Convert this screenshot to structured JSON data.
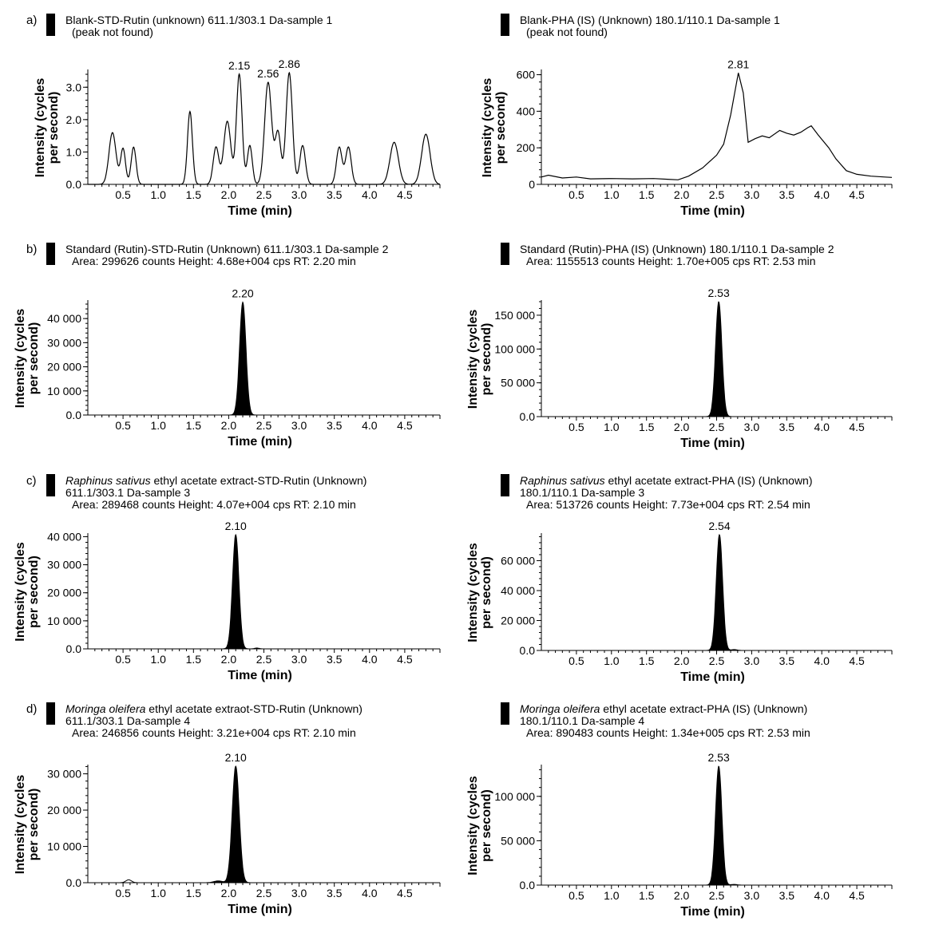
{
  "chart_data": [
    {
      "type": "line",
      "panel_label": "a)",
      "title_lines": [
        [
          {
            "t": "Blank-STD-Rutin (unknown) 611.1/303.1 Da-sample 1"
          }
        ],
        [
          {
            "t": "(peak not found)"
          }
        ]
      ],
      "xlabel": "Time (min)",
      "ylabel_lines": [
        "Intensity (cycles",
        "per second)"
      ],
      "xlim": [
        0,
        5.0
      ],
      "ylim": [
        0,
        3.5
      ],
      "xticks": [
        {
          "v": 0.5,
          "label": "0.5"
        },
        {
          "v": 1.0,
          "label": "1.0"
        },
        {
          "v": 1.5,
          "label": "1.5"
        },
        {
          "v": 2.0,
          "label": "2.0"
        },
        {
          "v": 2.5,
          "label": "2.5"
        },
        {
          "v": 3.0,
          "label": "3.0"
        },
        {
          "v": 3.5,
          "label": "3.5"
        },
        {
          "v": 4.0,
          "label": "4.0"
        },
        {
          "v": 4.5,
          "label": "4.5"
        }
      ],
      "yticks": [
        {
          "v": 0,
          "label": "0.0"
        },
        {
          "v": 1.0,
          "label": "1.0"
        },
        {
          "v": 2.0,
          "label": "2.0"
        },
        {
          "v": 3.0,
          "label": "3.0"
        }
      ],
      "filled": false,
      "peaks": [
        {
          "x": 0.35,
          "y": 1.6,
          "w": 0.05
        },
        {
          "x": 0.5,
          "y": 1.1,
          "w": 0.035
        },
        {
          "x": 0.65,
          "y": 1.15,
          "w": 0.035
        },
        {
          "x": 1.45,
          "y": 2.25,
          "w": 0.035
        },
        {
          "x": 1.82,
          "y": 1.15,
          "w": 0.04
        },
        {
          "x": 1.98,
          "y": 1.95,
          "w": 0.05
        },
        {
          "x": 2.15,
          "y": 3.4,
          "w": 0.04
        },
        {
          "x": 2.3,
          "y": 1.2,
          "w": 0.035
        },
        {
          "x": 2.56,
          "y": 3.15,
          "w": 0.05
        },
        {
          "x": 2.7,
          "y": 1.6,
          "w": 0.04
        },
        {
          "x": 2.86,
          "y": 3.45,
          "w": 0.045
        },
        {
          "x": 3.05,
          "y": 1.2,
          "w": 0.04
        },
        {
          "x": 3.57,
          "y": 1.15,
          "w": 0.04
        },
        {
          "x": 3.7,
          "y": 1.15,
          "w": 0.04
        },
        {
          "x": 4.35,
          "y": 1.3,
          "w": 0.06
        },
        {
          "x": 4.8,
          "y": 1.55,
          "w": 0.06
        }
      ],
      "peak_labels": [
        {
          "x": 2.15,
          "y": 3.4,
          "label": "2.15"
        },
        {
          "x": 2.56,
          "y": 3.15,
          "label": "2.56"
        },
        {
          "x": 2.86,
          "y": 3.45,
          "label": "2.86"
        }
      ]
    },
    {
      "type": "line",
      "panel_label": "",
      "title_lines": [
        [
          {
            "t": "Blank-PHA (IS) (Unknown) 180.1/110.1 Da-sample 1"
          }
        ],
        [
          {
            "t": "(peak not found)"
          }
        ]
      ],
      "xlabel": "Time (min)",
      "ylabel_lines": [
        "Intensity (cycles",
        "per second)"
      ],
      "xlim": [
        0,
        5.0
      ],
      "ylim": [
        0,
        620
      ],
      "xticks": [
        {
          "v": 0.5,
          "label": "0.5"
        },
        {
          "v": 1.0,
          "label": "1.0"
        },
        {
          "v": 1.5,
          "label": "1.5"
        },
        {
          "v": 2.0,
          "label": "2.0"
        },
        {
          "v": 2.5,
          "label": "2.5"
        },
        {
          "v": 3.0,
          "label": "3.0"
        },
        {
          "v": 3.5,
          "label": "3.5"
        },
        {
          "v": 4.0,
          "label": "4.0"
        },
        {
          "v": 4.5,
          "label": "4.5"
        }
      ],
      "yticks": [
        {
          "v": 0,
          "label": "0"
        },
        {
          "v": 200,
          "label": "200"
        },
        {
          "v": 400,
          "label": "400"
        },
        {
          "v": 600,
          "label": "600"
        }
      ],
      "filled": false,
      "points": [
        [
          0,
          40
        ],
        [
          0.1,
          50
        ],
        [
          0.3,
          35
        ],
        [
          0.5,
          40
        ],
        [
          0.7,
          30
        ],
        [
          1.0,
          32
        ],
        [
          1.3,
          30
        ],
        [
          1.6,
          32
        ],
        [
          1.8,
          28
        ],
        [
          1.95,
          25
        ],
        [
          2.1,
          45
        ],
        [
          2.3,
          90
        ],
        [
          2.5,
          160
        ],
        [
          2.6,
          220
        ],
        [
          2.7,
          380
        ],
        [
          2.81,
          610
        ],
        [
          2.88,
          500
        ],
        [
          2.95,
          230
        ],
        [
          3.05,
          250
        ],
        [
          3.15,
          265
        ],
        [
          3.25,
          255
        ],
        [
          3.4,
          295
        ],
        [
          3.5,
          280
        ],
        [
          3.6,
          270
        ],
        [
          3.7,
          285
        ],
        [
          3.8,
          310
        ],
        [
          3.85,
          320
        ],
        [
          3.95,
          270
        ],
        [
          4.1,
          200
        ],
        [
          4.2,
          140
        ],
        [
          4.35,
          75
        ],
        [
          4.5,
          55
        ],
        [
          4.7,
          45
        ],
        [
          4.9,
          40
        ],
        [
          5.0,
          38
        ]
      ],
      "peak_labels": [
        {
          "x": 2.81,
          "y": 610,
          "label": "2.81"
        }
      ]
    },
    {
      "type": "line",
      "panel_label": "b)",
      "title_lines": [
        [
          {
            "t": "Standard (Rutin)-STD-Rutin (Unknown) 611.1/303.1 Da-sample 2"
          }
        ],
        [
          {
            "t": "Area: 299626 counts Height: 4.68e+004 cps RT: 2.20 min"
          }
        ]
      ],
      "xlabel": "Time (min)",
      "ylabel_lines": [
        "Intensity (cycles",
        "per second)"
      ],
      "xlim": [
        0,
        5.0
      ],
      "ylim": [
        0,
        47000
      ],
      "xticks": [
        {
          "v": 0.5,
          "label": "0.5"
        },
        {
          "v": 1.0,
          "label": "1.0"
        },
        {
          "v": 1.5,
          "label": "1.5"
        },
        {
          "v": 2.0,
          "label": "2.0"
        },
        {
          "v": 2.5,
          "label": "2.5"
        },
        {
          "v": 3.0,
          "label": "3.0"
        },
        {
          "v": 3.5,
          "label": "3.5"
        },
        {
          "v": 4.0,
          "label": "4.0"
        },
        {
          "v": 4.5,
          "label": "4.5"
        }
      ],
      "yticks": [
        {
          "v": 0,
          "label": "0.0"
        },
        {
          "v": 10000,
          "label": "10 000"
        },
        {
          "v": 20000,
          "label": "20 000"
        },
        {
          "v": 30000,
          "label": "30 000"
        },
        {
          "v": 40000,
          "label": "40 000"
        }
      ],
      "filled": true,
      "peaks": [
        {
          "x": 2.2,
          "y": 46800,
          "w": 0.045
        }
      ],
      "peak_labels": [
        {
          "x": 2.2,
          "y": 46800,
          "label": "2.20",
          "small": true
        }
      ]
    },
    {
      "type": "line",
      "panel_label": "",
      "title_lines": [
        [
          {
            "t": "Standard (Rutin)-PHA (IS) (Unknown) 180.1/110.1 Da-sample 2"
          }
        ],
        [
          {
            "t": "Area: 1155513 counts Height: 1.70e+005 cps RT: 2.53 min"
          }
        ]
      ],
      "xlabel": "Time (min)",
      "ylabel_lines": [
        "Intensity (cycles",
        "per second)"
      ],
      "xlim": [
        0,
        5.0
      ],
      "ylim": [
        0,
        170000
      ],
      "xticks": [
        {
          "v": 0.5,
          "label": "0.5"
        },
        {
          "v": 1.0,
          "label": "1.0"
        },
        {
          "v": 1.5,
          "label": "1.5"
        },
        {
          "v": 2.0,
          "label": "2.0"
        },
        {
          "v": 2.5,
          "label": "2.5"
        },
        {
          "v": 3.0,
          "label": "3.0"
        },
        {
          "v": 3.5,
          "label": "3.5"
        },
        {
          "v": 4.0,
          "label": "4.0"
        },
        {
          "v": 4.5,
          "label": "4.5"
        }
      ],
      "yticks": [
        {
          "v": 0,
          "label": "0.0"
        },
        {
          "v": 50000,
          "label": "50 000"
        },
        {
          "v": 100000,
          "label": "100 000"
        },
        {
          "v": 150000,
          "label": "150 000"
        }
      ],
      "filled": true,
      "peaks": [
        {
          "x": 2.53,
          "y": 170000,
          "w": 0.045
        }
      ],
      "peak_labels": [
        {
          "x": 2.53,
          "y": 170000,
          "label": "2.53"
        }
      ]
    },
    {
      "type": "line",
      "panel_label": "c)",
      "title_lines": [
        [
          {
            "t": "Raphinus sativus",
            "i": true
          },
          {
            "t": " ethyl acetate extract-STD-Rutin (Unknown)"
          }
        ],
        [
          {
            "t": "611.1/303.1 Da-sample 3"
          }
        ],
        [
          {
            "t": "Area: 289468 counts Height: 4.07e+004 cps RT: 2.10 min"
          }
        ]
      ],
      "xlabel": "Time (min)",
      "ylabel_lines": [
        "Intensity (cycles",
        "per second)"
      ],
      "xlim": [
        0,
        5.0
      ],
      "ylim": [
        0,
        40700
      ],
      "xticks": [
        {
          "v": 0.5,
          "label": "0.5"
        },
        {
          "v": 1.0,
          "label": "1.0"
        },
        {
          "v": 1.5,
          "label": "1.5"
        },
        {
          "v": 2.0,
          "label": "2.0"
        },
        {
          "v": 2.5,
          "label": "2.5"
        },
        {
          "v": 3.0,
          "label": "3.0"
        },
        {
          "v": 3.5,
          "label": "3.5"
        },
        {
          "v": 4.0,
          "label": "4.0"
        },
        {
          "v": 4.5,
          "label": "4.5"
        }
      ],
      "yticks": [
        {
          "v": 0,
          "label": "0.0"
        },
        {
          "v": 10000,
          "label": "10 000"
        },
        {
          "v": 20000,
          "label": "20 000"
        },
        {
          "v": 30000,
          "label": "30 000"
        },
        {
          "v": 40000,
          "label": "40 000"
        }
      ],
      "filled": true,
      "peaks": [
        {
          "x": 2.1,
          "y": 40700,
          "w": 0.045
        },
        {
          "x": 2.4,
          "y": 300,
          "w": 0.03
        }
      ],
      "peak_labels": [
        {
          "x": 2.1,
          "y": 40700,
          "label": "2.10"
        }
      ]
    },
    {
      "type": "line",
      "panel_label": "",
      "title_lines": [
        [
          {
            "t": "Raphinus sativus",
            "i": true
          },
          {
            "t": " ethyl acetate extract-PHA (IS) (Unknown)"
          }
        ],
        [
          {
            "t": "180.1/110.1 Da-sample 3"
          }
        ],
        [
          {
            "t": "Area: 513726 counts Height: 7.73e+004 cps RT: 2.54 min"
          }
        ]
      ],
      "xlabel": "Time (min)",
      "ylabel_lines": [
        "Intensity (cycles",
        "per second)"
      ],
      "xlim": [
        0,
        5.0
      ],
      "ylim": [
        0,
        77300
      ],
      "xticks": [
        {
          "v": 0.5,
          "label": "0.5"
        },
        {
          "v": 1.0,
          "label": "1.0"
        },
        {
          "v": 1.5,
          "label": "1.5"
        },
        {
          "v": 2.0,
          "label": "2.0"
        },
        {
          "v": 2.5,
          "label": "2.5"
        },
        {
          "v": 3.0,
          "label": "3.0"
        },
        {
          "v": 3.5,
          "label": "3.5"
        },
        {
          "v": 4.0,
          "label": "4.0"
        },
        {
          "v": 4.5,
          "label": "4.5"
        }
      ],
      "yticks": [
        {
          "v": 0,
          "label": "0.0"
        },
        {
          "v": 20000,
          "label": "20 000"
        },
        {
          "v": 40000,
          "label": "40 000"
        },
        {
          "v": 60000,
          "label": "60 000"
        }
      ],
      "filled": true,
      "peaks": [
        {
          "x": 2.54,
          "y": 77300,
          "w": 0.045
        },
        {
          "x": 2.75,
          "y": 600,
          "w": 0.04
        }
      ],
      "peak_labels": [
        {
          "x": 2.54,
          "y": 77300,
          "label": "2.54"
        }
      ]
    },
    {
      "type": "line",
      "panel_label": "d)",
      "title_lines": [
        [
          {
            "t": "Moringa oleifera",
            "i": true
          },
          {
            "t": " ethyl acetate extraot-STD-Rutin (Unknown)"
          }
        ],
        [
          {
            "t": "611.1/303.1 Da-sample 4"
          }
        ],
        [
          {
            "t": "Area: 246856 counts Height: 3.21e+004 cps RT: 2.10 min"
          }
        ]
      ],
      "xlabel": "Time (min)",
      "ylabel_lines": [
        "Intensity (cycles",
        "per second)"
      ],
      "xlim": [
        0,
        5.0
      ],
      "ylim": [
        0,
        32100
      ],
      "xticks": [
        {
          "v": 0.5,
          "label": "0.5"
        },
        {
          "v": 1.0,
          "label": "1.0"
        },
        {
          "v": 1.5,
          "label": "1.5"
        },
        {
          "v": 2.0,
          "label": "2.0"
        },
        {
          "v": 2.5,
          "label": "2.5"
        },
        {
          "v": 3.0,
          "label": "3.0"
        },
        {
          "v": 3.5,
          "label": "3.5"
        },
        {
          "v": 4.0,
          "label": "4.0"
        },
        {
          "v": 4.5,
          "label": "4.5"
        }
      ],
      "yticks": [
        {
          "v": 0,
          "label": "0.0"
        },
        {
          "v": 10000,
          "label": "10 000"
        },
        {
          "v": 20000,
          "label": "20 000"
        },
        {
          "v": 30000,
          "label": "30 000"
        }
      ],
      "filled": true,
      "peaks": [
        {
          "x": 2.1,
          "y": 32100,
          "w": 0.05
        },
        {
          "x": 1.85,
          "y": 500,
          "w": 0.06
        }
      ],
      "outline_peaks": [
        {
          "x": 0.58,
          "y": 800,
          "w": 0.04
        }
      ],
      "peak_labels": [
        {
          "x": 2.1,
          "y": 32100,
          "label": "2.10"
        }
      ]
    },
    {
      "type": "line",
      "panel_label": "",
      "title_lines": [
        [
          {
            "t": "Moringa oleifera",
            "i": true
          },
          {
            "t": " ethyl acetate extract-PHA (IS) (Unknown)"
          }
        ],
        [
          {
            "t": "180.1/110.1 Da-sample 4"
          }
        ],
        [
          {
            "t": "Area: 890483 counts Height: 1.34e+005 cps RT: 2.53 min"
          }
        ]
      ],
      "xlabel": "Time (min)",
      "ylabel_lines": [
        "Intensity (cycles",
        "per second)"
      ],
      "xlim": [
        0,
        5.0
      ],
      "ylim": [
        0,
        134000
      ],
      "xticks": [
        {
          "v": 0.5,
          "label": "0.5"
        },
        {
          "v": 1.0,
          "label": "1.0"
        },
        {
          "v": 1.5,
          "label": "1.5"
        },
        {
          "v": 2.0,
          "label": "2.0"
        },
        {
          "v": 2.5,
          "label": "2.5"
        },
        {
          "v": 3.0,
          "label": "3.0"
        },
        {
          "v": 3.5,
          "label": "3.5"
        },
        {
          "v": 4.0,
          "label": "4.0"
        },
        {
          "v": 4.5,
          "label": "4.5"
        }
      ],
      "yticks": [
        {
          "v": 0,
          "label": "0.0"
        },
        {
          "v": 50000,
          "label": "50 000"
        },
        {
          "v": 100000,
          "label": "100 000"
        }
      ],
      "filled": true,
      "peaks": [
        {
          "x": 2.53,
          "y": 134000,
          "w": 0.045
        },
        {
          "x": 2.75,
          "y": 800,
          "w": 0.04
        }
      ],
      "peak_labels": [
        {
          "x": 2.53,
          "y": 134000,
          "label": "2.53"
        }
      ]
    }
  ]
}
